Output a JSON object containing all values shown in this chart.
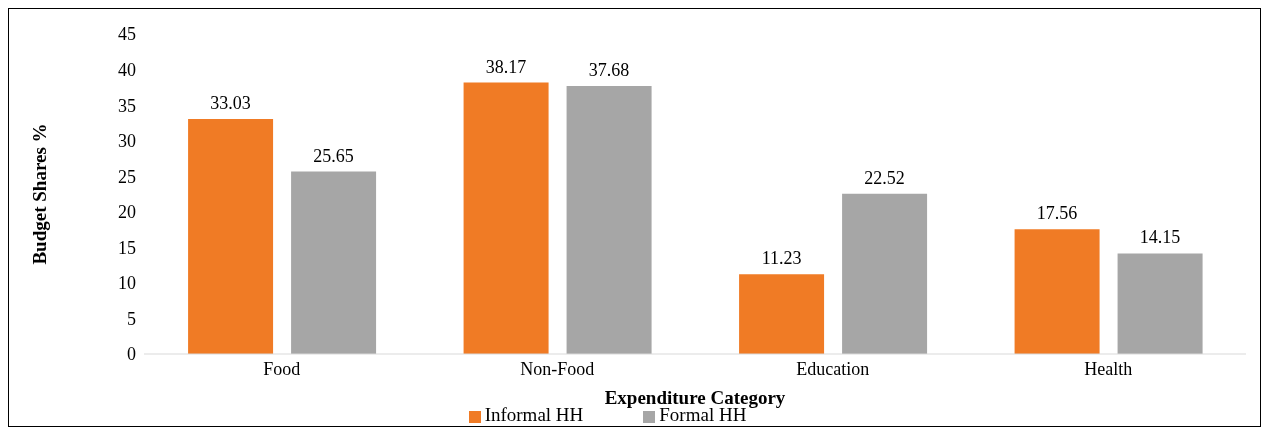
{
  "chart_data": {
    "type": "bar",
    "xlabel": "Expenditure Category",
    "ylabel": "Budget Shares %",
    "categories": [
      "Food",
      "Non-Food",
      "Education",
      "Health"
    ],
    "series": [
      {
        "name": "Informal HH",
        "color": "#f07b25",
        "values": [
          33.03,
          38.17,
          11.23,
          17.56
        ]
      },
      {
        "name": "Formal HH",
        "color": "#a6a6a6",
        "values": [
          25.65,
          37.68,
          22.52,
          14.15
        ]
      }
    ],
    "ylim": [
      0,
      45
    ],
    "yticks": [
      0,
      5,
      10,
      15,
      20,
      25,
      30,
      35,
      40,
      45
    ],
    "data_labels": true,
    "legend": "bottom"
  }
}
